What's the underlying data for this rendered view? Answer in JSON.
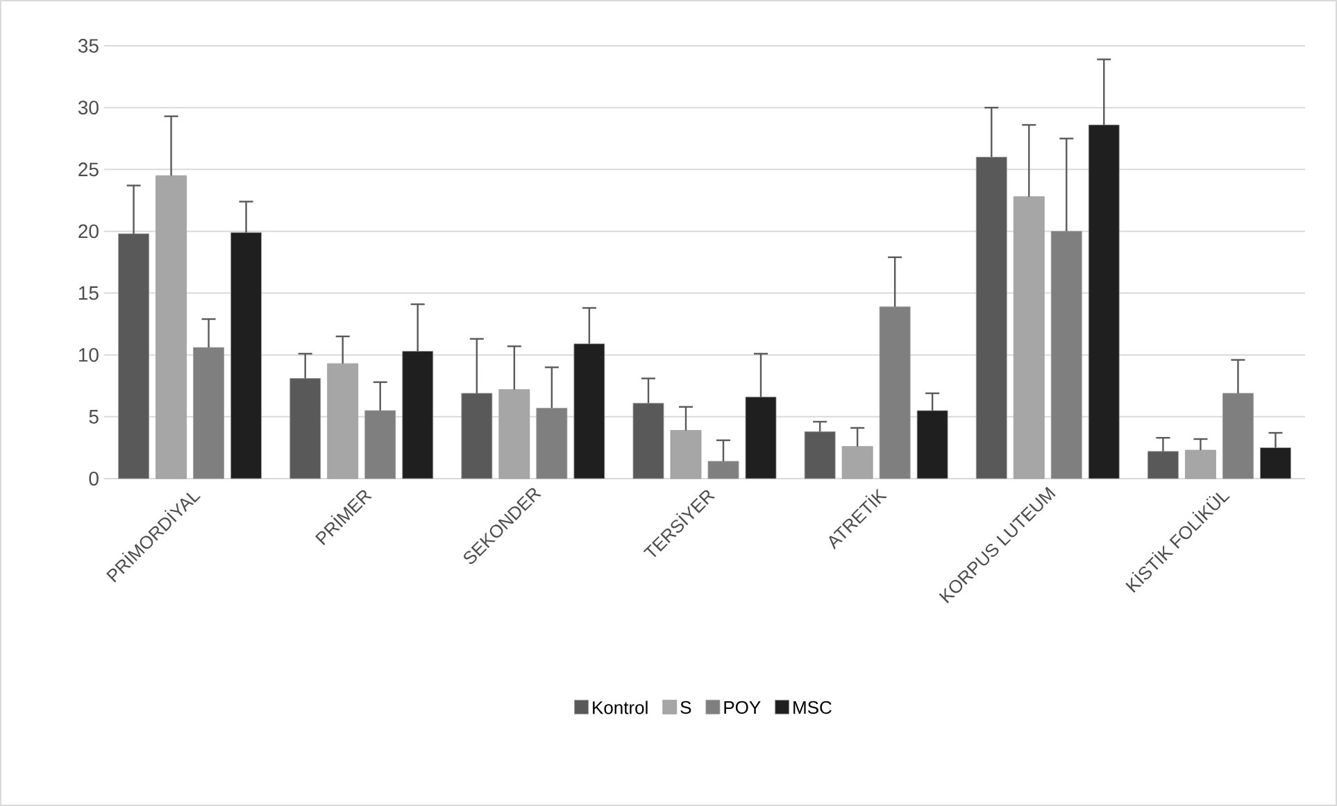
{
  "chart_data": {
    "type": "bar",
    "categories": [
      "PRİMORDİYAL",
      "PRİMER",
      "SEKONDER",
      "TERSİYER",
      "ATRETİK",
      "KORPUS LUTEUM",
      "KİSTİK FOLİKÜL"
    ],
    "series": [
      {
        "name": "Kontrol",
        "color": "#595959",
        "values": [
          19.8,
          8.1,
          6.9,
          6.1,
          3.8,
          26.0,
          2.2
        ],
        "errors": [
          3.9,
          2.0,
          4.4,
          2.0,
          0.8,
          4.0,
          1.1
        ]
      },
      {
        "name": "S",
        "color": "#a6a6a6",
        "values": [
          24.5,
          9.3,
          7.2,
          3.9,
          2.6,
          22.8,
          2.3
        ],
        "errors": [
          4.8,
          2.2,
          3.5,
          1.9,
          1.5,
          5.8,
          0.9
        ]
      },
      {
        "name": "POY",
        "color": "#7f7f7f",
        "values": [
          10.6,
          5.5,
          5.7,
          1.4,
          13.9,
          20.0,
          6.9
        ],
        "errors": [
          2.3,
          2.3,
          3.3,
          1.7,
          4.0,
          7.5,
          2.7
        ]
      },
      {
        "name": "MSC",
        "color": "#1f1f1f",
        "values": [
          19.9,
          10.3,
          10.9,
          6.6,
          5.5,
          28.6,
          2.5
        ],
        "errors": [
          2.5,
          3.8,
          2.9,
          3.5,
          1.4,
          5.3,
          1.2
        ]
      }
    ],
    "ylim": [
      0,
      35
    ],
    "yticks": [
      0,
      5,
      10,
      15,
      20,
      25,
      30,
      35
    ],
    "grid": "y",
    "legend": "bottom"
  }
}
